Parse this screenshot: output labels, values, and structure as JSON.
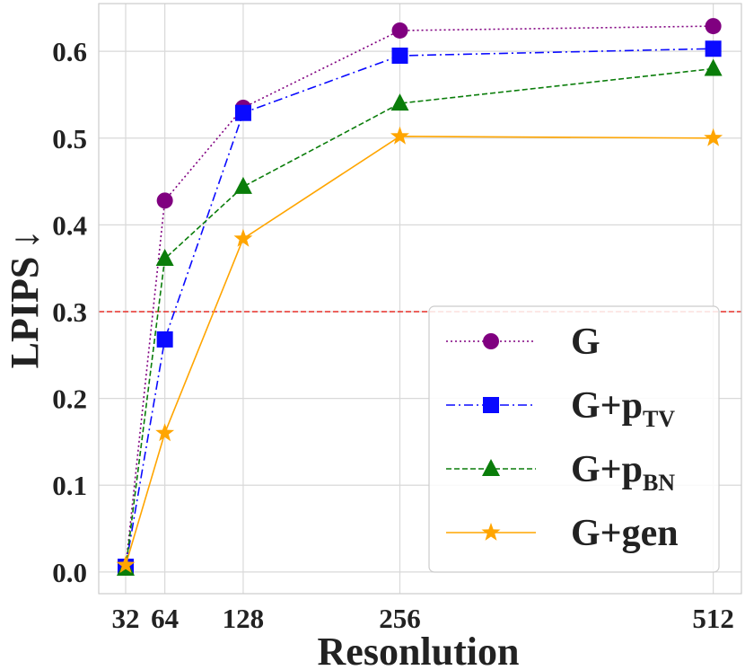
{
  "chart_data": {
    "type": "line",
    "title": "",
    "xlabel": "Resonlution",
    "ylabel": "LPIPS",
    "ylabel_arrow": "↓",
    "x": [
      32,
      64,
      128,
      256,
      512
    ],
    "x_tick_labels": [
      "32",
      "64",
      "128",
      "256",
      "512"
    ],
    "xlim": [
      10,
      535
    ],
    "ylim": [
      -0.025,
      0.655
    ],
    "y_ticks": [
      "0.0",
      "0.1",
      "0.2",
      "0.3",
      "0.4",
      "0.5",
      "0.6"
    ],
    "y_tick_values": [
      0.0,
      0.1,
      0.2,
      0.3,
      0.4,
      0.5,
      0.6
    ],
    "grid": true,
    "legend_position": "bottom-right",
    "reference_line": {
      "y": 0.3,
      "color": "#e8302a",
      "style": "dashed"
    },
    "series": [
      {
        "name": "G",
        "name_base": "G",
        "name_sub": "",
        "color": "#800080",
        "dash": "dotted",
        "marker": "circle",
        "values": [
          0.005,
          0.428,
          0.535,
          0.624,
          0.629
        ]
      },
      {
        "name": "G+pTV",
        "name_base": "G+p",
        "name_sub": "TV",
        "color": "#0a0aff",
        "dash": "dashdot",
        "marker": "square",
        "values": [
          0.006,
          0.268,
          0.529,
          0.595,
          0.603
        ]
      },
      {
        "name": "G+pBN",
        "name_base": "G+p",
        "name_sub": "BN",
        "color": "#0a7d0a",
        "dash": "dashed",
        "marker": "triangle",
        "values": [
          0.004,
          0.361,
          0.444,
          0.54,
          0.58
        ]
      },
      {
        "name": "G+gen",
        "name_base": "G+gen",
        "name_sub": "",
        "color": "#ffa500",
        "dash": "solid",
        "marker": "star",
        "values": [
          0.008,
          0.16,
          0.384,
          0.502,
          0.5
        ]
      }
    ]
  }
}
